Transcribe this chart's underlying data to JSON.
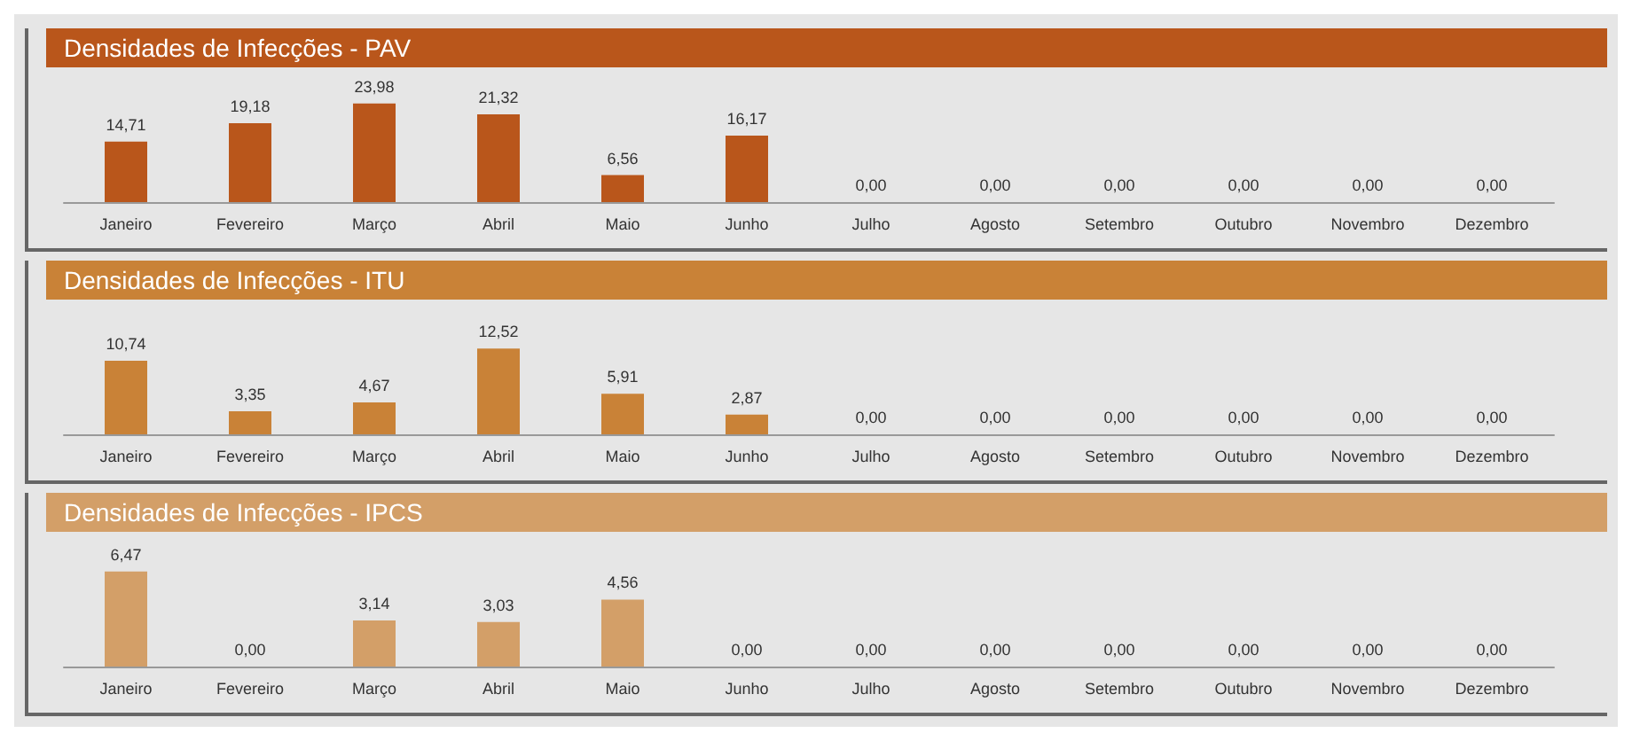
{
  "chart_data": [
    {
      "type": "bar",
      "title": "Densidades de Infecções - PAV",
      "categories": [
        "Janeiro",
        "Fevereiro",
        "Março",
        "Abril",
        "Maio",
        "Junho",
        "Julho",
        "Agosto",
        "Setembro",
        "Outubro",
        "Novembro",
        "Dezembro"
      ],
      "values": [
        14.71,
        19.18,
        23.98,
        21.32,
        6.56,
        16.17,
        0,
        0,
        0,
        0,
        0,
        0
      ],
      "value_labels": [
        "14,71",
        "19,18",
        "23,98",
        "21,32",
        "6,56",
        "16,17",
        "0,00",
        "0,00",
        "0,00",
        "0,00",
        "0,00",
        "0,00"
      ],
      "color": "#b9561b"
    },
    {
      "type": "bar",
      "title": "Densidades de Infecções - ITU",
      "categories": [
        "Janeiro",
        "Fevereiro",
        "Março",
        "Abril",
        "Maio",
        "Junho",
        "Julho",
        "Agosto",
        "Setembro",
        "Outubro",
        "Novembro",
        "Dezembro"
      ],
      "values": [
        10.74,
        3.35,
        4.67,
        12.52,
        5.91,
        2.87,
        0,
        0,
        0,
        0,
        0,
        0
      ],
      "value_labels": [
        "10,74",
        "3,35",
        "4,67",
        "12,52",
        "5,91",
        "2,87",
        "0,00",
        "0,00",
        "0,00",
        "0,00",
        "0,00",
        "0,00"
      ],
      "color": "#c98237"
    },
    {
      "type": "bar",
      "title": "Densidades de Infecções - IPCS",
      "categories": [
        "Janeiro",
        "Fevereiro",
        "Março",
        "Abril",
        "Maio",
        "Junho",
        "Julho",
        "Agosto",
        "Setembro",
        "Outubro",
        "Novembro",
        "Dezembro"
      ],
      "values": [
        6.47,
        0,
        3.14,
        3.03,
        4.56,
        0,
        0,
        0,
        0,
        0,
        0,
        0
      ],
      "value_labels": [
        "6,47",
        "0,00",
        "3,14",
        "3,03",
        "4,56",
        "0,00",
        "0,00",
        "0,00",
        "0,00",
        "0,00",
        "0,00",
        "0,00"
      ],
      "color": "#d39f68"
    }
  ]
}
